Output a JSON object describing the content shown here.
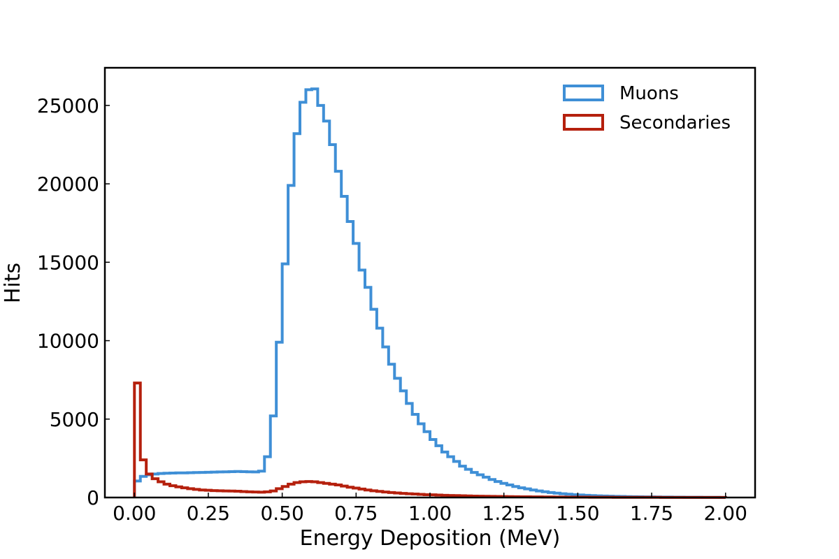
{
  "chart_data": {
    "type": "histogram",
    "title": "",
    "xlabel": "Energy Deposition (MeV)",
    "ylabel": "Hits",
    "xlim": [
      -0.1,
      2.1
    ],
    "ylim": [
      0,
      27400
    ],
    "xticks": [
      0.0,
      0.25,
      0.5,
      0.75,
      1.0,
      1.25,
      1.5,
      1.75,
      2.0
    ],
    "xtick_labels": [
      "0.00",
      "0.25",
      "0.50",
      "0.75",
      "1.00",
      "1.25",
      "1.50",
      "1.75",
      "2.00"
    ],
    "yticks": [
      0,
      5000,
      10000,
      15000,
      20000,
      25000
    ],
    "ytick_labels": [
      "0",
      "5000",
      "10000",
      "15000",
      "20000",
      "25000"
    ],
    "bin_edges_start": 0.0,
    "bin_width": 0.02,
    "legend_position": "top-right",
    "grid": false,
    "series": [
      {
        "name": "Muons",
        "color": "#3f8fd6",
        "values": [
          1050,
          1350,
          1450,
          1500,
          1530,
          1550,
          1560,
          1570,
          1570,
          1580,
          1590,
          1600,
          1610,
          1620,
          1630,
          1640,
          1650,
          1660,
          1650,
          1640,
          1630,
          1680,
          2600,
          5200,
          9900,
          14900,
          19900,
          23200,
          25200,
          26000,
          26050,
          25000,
          24000,
          22500,
          20800,
          19200,
          17600,
          16200,
          14500,
          13400,
          12000,
          10800,
          9600,
          8500,
          7600,
          6800,
          6000,
          5300,
          4700,
          4200,
          3700,
          3300,
          2900,
          2600,
          2300,
          2000,
          1800,
          1600,
          1450,
          1300,
          1150,
          1020,
          900,
          800,
          700,
          620,
          550,
          480,
          420,
          370,
          320,
          280,
          240,
          210,
          180,
          160,
          140,
          120,
          105,
          95,
          85,
          75,
          65,
          58,
          52,
          46,
          41,
          37,
          33,
          30,
          27,
          24,
          21,
          19,
          17,
          15,
          13,
          11,
          10,
          8
        ]
      },
      {
        "name": "Secondaries",
        "color": "#b5200d",
        "values": [
          7300,
          2400,
          1500,
          1200,
          1000,
          850,
          750,
          680,
          620,
          560,
          520,
          480,
          460,
          440,
          430,
          420,
          410,
          400,
          380,
          360,
          350,
          340,
          360,
          420,
          560,
          700,
          850,
          950,
          1000,
          1020,
          1000,
          950,
          900,
          850,
          800,
          730,
          660,
          600,
          540,
          480,
          430,
          390,
          350,
          320,
          290,
          260,
          240,
          220,
          200,
          180,
          170,
          155,
          140,
          130,
          120,
          110,
          100,
          92,
          85,
          78,
          72,
          66,
          60,
          55,
          51,
          47,
          43,
          40,
          37,
          34,
          31,
          29,
          27,
          25,
          23,
          21,
          20,
          18,
          17,
          16,
          15,
          14,
          13,
          12,
          11,
          10,
          10,
          9,
          9,
          8,
          8,
          7,
          7,
          6,
          6,
          5,
          5,
          5,
          4,
          4
        ]
      }
    ]
  }
}
